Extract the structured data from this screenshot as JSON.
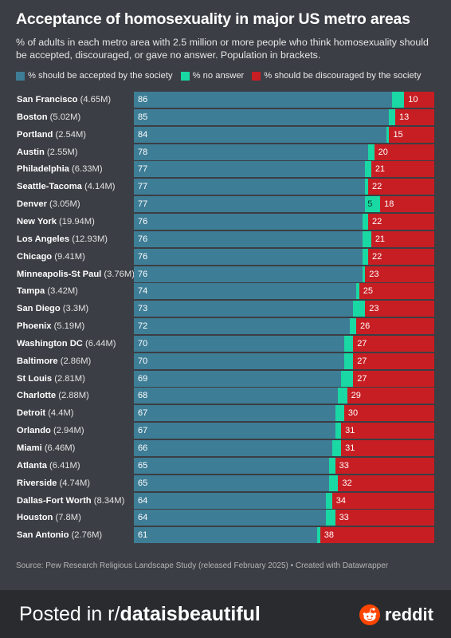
{
  "header": {
    "title": "Acceptance of homosexuality in major US metro areas",
    "subtitle": "% of adults in each metro area with 2.5 million or more people who think homosexuality should be accepted, discouraged, or gave no answer. Population in brackets."
  },
  "legend": [
    {
      "label": "% should be accepted by the society",
      "color": "#3e7d96"
    },
    {
      "label": "% no answer",
      "color": "#19d8a4"
    },
    {
      "label": "% should be discouraged by the society",
      "color": "#c71e23"
    }
  ],
  "chart_data": {
    "type": "bar",
    "orientation": "horizontal-stacked",
    "title": "Acceptance of homosexuality in major US metro areas",
    "categories": [
      "San Francisco",
      "Boston",
      "Portland",
      "Austin",
      "Philadelphia",
      "Seattle-Tacoma",
      "Denver",
      "New York",
      "Los Angeles",
      "Chicago",
      "Minneapolis-St Paul",
      "Tampa",
      "San Diego",
      "Phoenix",
      "Washington DC",
      "Baltimore",
      "St Louis",
      "Charlotte",
      "Detroit",
      "Orlando",
      "Miami",
      "Atlanta",
      "Riverside",
      "Dallas-Fort Worth",
      "Houston",
      "San Antonio"
    ],
    "populations": [
      "(4.65M)",
      "(5.02M)",
      "(2.54M)",
      "(2.55M)",
      "(6.33M)",
      "(4.14M)",
      "(3.05M)",
      "(19.94M)",
      "(12.93M)",
      "(9.41M)",
      "(3.76M)",
      "(3.42M)",
      "(3.3M)",
      "(5.19M)",
      "(6.44M)",
      "(2.86M)",
      "(2.81M)",
      "(2.88M)",
      "(4.4M)",
      "(2.94M)",
      "(6.46M)",
      "(6.41M)",
      "(4.74M)",
      "(8.34M)",
      "(7.8M)",
      "(2.76M)"
    ],
    "series": [
      {
        "name": "% should be accepted by the society",
        "color": "#3e7d96",
        "values": [
          86,
          85,
          84,
          78,
          77,
          77,
          77,
          76,
          76,
          76,
          76,
          74,
          73,
          72,
          70,
          70,
          69,
          68,
          67,
          67,
          66,
          65,
          65,
          64,
          64,
          61
        ]
      },
      {
        "name": "% no answer",
        "color": "#19d8a4",
        "values": [
          4,
          2,
          1,
          2,
          2,
          1,
          5,
          2,
          3,
          2,
          1,
          1,
          4,
          2,
          3,
          3,
          4,
          3,
          3,
          2,
          3,
          2,
          3,
          2,
          3,
          1
        ]
      },
      {
        "name": "% should be discouraged by the society",
        "color": "#c71e23",
        "values": [
          10,
          13,
          15,
          20,
          21,
          22,
          18,
          22,
          21,
          22,
          23,
          25,
          23,
          26,
          27,
          27,
          27,
          29,
          30,
          31,
          31,
          33,
          32,
          34,
          33,
          38
        ]
      }
    ],
    "shown_no_answer_labels": {
      "Denver": "5"
    },
    "xlim": [
      0,
      100
    ],
    "grid": false,
    "legend_position": "top-left"
  },
  "source": "Source: Pew Research Religious Landscape Study (released February 2025) • Created with Datawrapper",
  "footer": {
    "posted_prefix": "Posted in r/",
    "subreddit": "dataisbeautiful",
    "brand": "reddit"
  }
}
